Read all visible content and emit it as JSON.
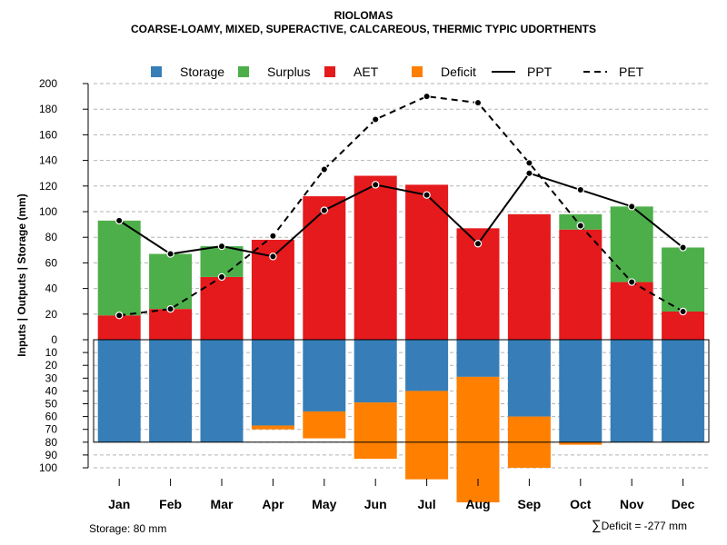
{
  "chart_data": {
    "type": "bar",
    "title": "RIOLOMAS",
    "subtitle": "COARSE-LOAMY, MIXED, SUPERACTIVE, CALCAREOUS, THERMIC TYPIC UDORTHENTS",
    "ylabel": "Inputs | Outputs | Storage     (mm)",
    "categories": [
      "Jan",
      "Feb",
      "Mar",
      "Apr",
      "May",
      "Jun",
      "Jul",
      "Aug",
      "Sep",
      "Oct",
      "Nov",
      "Dec"
    ],
    "upper_ylim": [
      0,
      200
    ],
    "upper_ticks": [
      "0",
      "20",
      "40",
      "60",
      "80",
      "100",
      "120",
      "140",
      "160",
      "180",
      "200"
    ],
    "lower_ylim": [
      0,
      100
    ],
    "lower_ticks": [
      "10",
      "20",
      "30",
      "40",
      "50",
      "60",
      "70",
      "80",
      "90",
      "100"
    ],
    "legend": [
      {
        "key": "storage",
        "label": "Storage",
        "kind": "box"
      },
      {
        "key": "surplus",
        "label": "Surplus",
        "kind": "box"
      },
      {
        "key": "aet",
        "label": "AET",
        "kind": "box"
      },
      {
        "key": "deficit",
        "label": "Deficit",
        "kind": "box"
      },
      {
        "key": "ppt",
        "label": "PPT",
        "kind": "solid"
      },
      {
        "key": "pet",
        "label": "PET",
        "kind": "dashed"
      }
    ],
    "colors": {
      "storage": "#377EB8",
      "surplus": "#4DAF4A",
      "aet": "#E41A1C",
      "deficit": "#FF7F00"
    },
    "series": [
      {
        "name": "AET",
        "values": [
          19,
          24,
          49,
          78,
          112,
          128,
          121,
          87,
          98,
          86,
          45,
          22
        ]
      },
      {
        "name": "Surplus",
        "values": [
          74,
          43,
          24,
          0,
          0,
          0,
          0,
          0,
          0,
          12,
          59,
          50
        ]
      },
      {
        "name": "PPT",
        "values": [
          93,
          67,
          73,
          65,
          101,
          121,
          113,
          75,
          130,
          117,
          104,
          72
        ]
      },
      {
        "name": "PET",
        "values": [
          19,
          24,
          49,
          81,
          133,
          172,
          190,
          185,
          138,
          89,
          45,
          22
        ]
      },
      {
        "name": "Storage",
        "values": [
          80,
          80,
          80,
          67,
          56,
          49,
          40,
          29,
          60,
          80,
          80,
          80
        ]
      },
      {
        "name": "Deficit",
        "values": [
          0,
          0,
          0,
          3,
          21,
          44,
          69,
          98,
          40,
          2,
          0,
          0
        ]
      }
    ],
    "storage_capacity": 80
  },
  "footer": {
    "storage_text": "Storage: 80 mm",
    "deficit_symbol": "∑",
    "deficit_text": "Deficit = -277 mm"
  }
}
